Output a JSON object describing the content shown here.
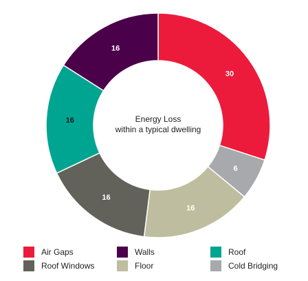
{
  "chart_data": {
    "type": "pie",
    "donut": true,
    "center_text": [
      "Energy Loss",
      "within a typical dwelling"
    ],
    "legend_placement": "bottom",
    "slices": [
      {
        "name": "Air Gaps",
        "value": 30,
        "color": "#ec1b3b",
        "label_color": "#ffffff"
      },
      {
        "name": "Cold Bridging",
        "value": 6,
        "color": "#a7a9ac",
        "label_color": "#ffffff"
      },
      {
        "name": "Floor",
        "value": 16,
        "color": "#bfbd9f",
        "label_color": "#ffffff"
      },
      {
        "name": "Roof Windows",
        "value": 16,
        "color": "#63625a",
        "label_color": "#ffffff"
      },
      {
        "name": "Roof",
        "value": 16,
        "color": "#00a591",
        "label_color": "#1a1a1a"
      },
      {
        "name": "Walls",
        "value": 16,
        "color": "#4b004a",
        "label_color": "#ffffff"
      }
    ],
    "legend_order": [
      "Air Gaps",
      "Walls",
      "Roof",
      "Roof Windows",
      "Floor",
      "Cold Bridging"
    ]
  }
}
